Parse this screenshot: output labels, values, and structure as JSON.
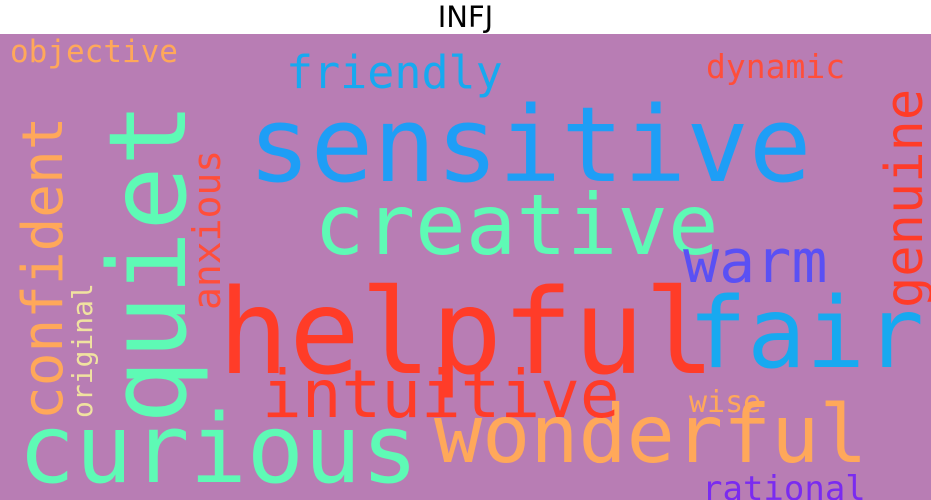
{
  "title": "INFJ",
  "colors": {
    "background": "#B87DB4"
  },
  "words": [
    {
      "text": "helpful",
      "color": "#FF3C28"
    },
    {
      "text": "sensitive",
      "color": "#1E9EF6"
    },
    {
      "text": "curious",
      "color": "#5EFAB5"
    },
    {
      "text": "wonderful",
      "color": "#FFA85A"
    },
    {
      "text": "quiet",
      "color": "#5EFAB5"
    },
    {
      "text": "creative",
      "color": "#5EFAB5"
    },
    {
      "text": "fair",
      "color": "#17A9F0"
    },
    {
      "text": "intuitive",
      "color": "#FF3C28"
    },
    {
      "text": "confident",
      "color": "#FFA85A"
    },
    {
      "text": "genuine",
      "color": "#FF3C28"
    },
    {
      "text": "warm",
      "color": "#5A50F4"
    },
    {
      "text": "friendly",
      "color": "#17A9F0"
    },
    {
      "text": "anxious",
      "color": "#FF4E3A"
    },
    {
      "text": "dynamic",
      "color": "#FF4E3A"
    },
    {
      "text": "objective",
      "color": "#FFA85A"
    },
    {
      "text": "original",
      "color": "#F0E2A0"
    },
    {
      "text": "wise",
      "color": "#FFA85A"
    },
    {
      "text": "rational",
      "color": "#7A2BF0"
    }
  ]
}
